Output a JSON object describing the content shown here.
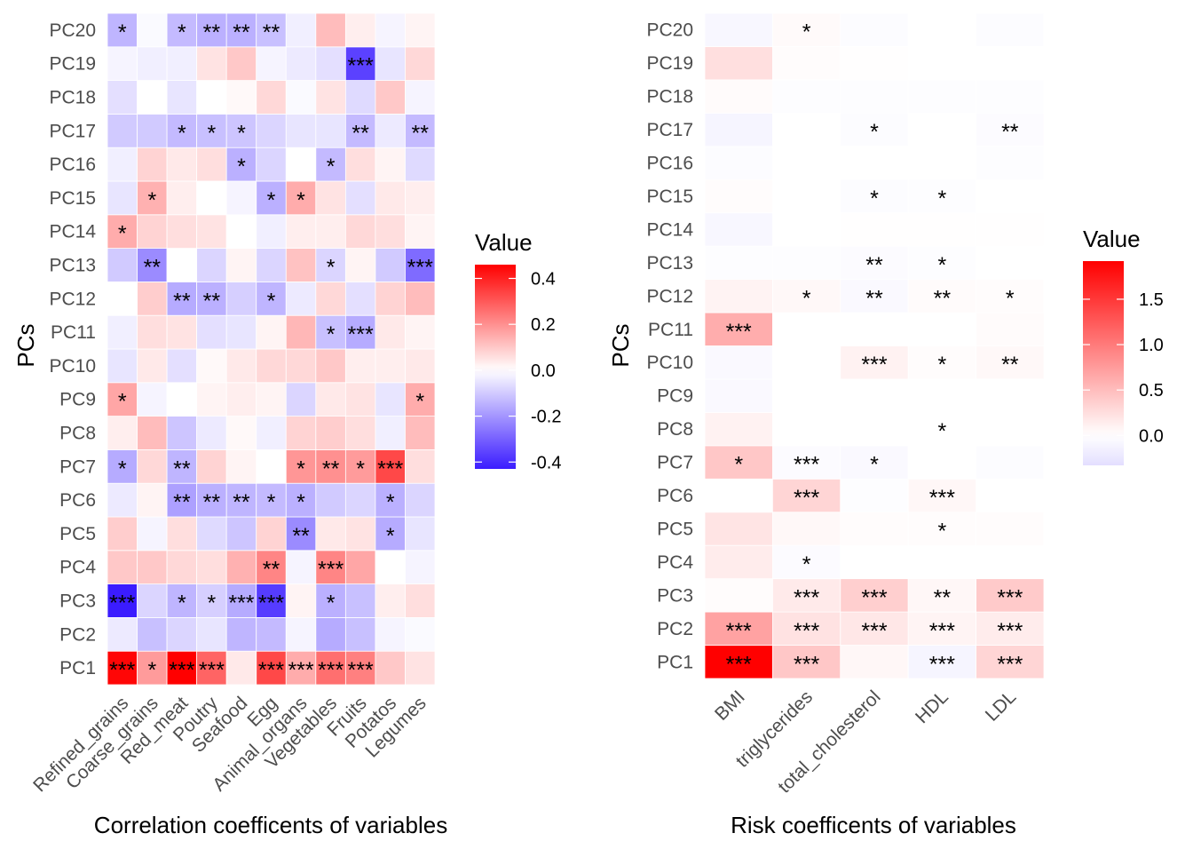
{
  "chart_data": [
    {
      "type": "heatmap",
      "xlabel": "Correlation coefficents of variables",
      "ylabel": "PCs",
      "x_categories": [
        "Refined_grains",
        "Coarse_grains",
        "Red_meat",
        "Poutry",
        "Seafood",
        "Egg",
        "Animal_organs",
        "Vegetables",
        "Fruits",
        "Potatos",
        "Legumes"
      ],
      "y_categories": [
        "PC1",
        "PC2",
        "PC3",
        "PC4",
        "PC5",
        "PC6",
        "PC7",
        "PC8",
        "PC9",
        "PC10",
        "PC11",
        "PC12",
        "PC13",
        "PC14",
        "PC15",
        "PC16",
        "PC17",
        "PC18",
        "PC19",
        "PC20"
      ],
      "legend": {
        "title": "Value",
        "ticks": [
          0.4,
          0.2,
          0.0,
          -0.2,
          -0.4
        ],
        "tick_labels": [
          "0.4",
          "0.2",
          "0.0",
          "-0.2",
          "-0.4"
        ],
        "range": [
          -0.43,
          0.46
        ],
        "position": "right"
      },
      "colors": {
        "low": "#3b1cff",
        "mid": "#ffffff",
        "high": "#ff0000"
      },
      "values": [
        [
          0.45,
          0.18,
          0.46,
          0.28,
          0.04,
          0.33,
          0.15,
          0.26,
          0.23,
          0.1,
          0.05
        ],
        [
          -0.04,
          -0.12,
          -0.08,
          -0.05,
          -0.14,
          -0.13,
          -0.02,
          -0.16,
          -0.12,
          -0.02,
          -0.01
        ],
        [
          -0.43,
          -0.08,
          -0.14,
          -0.09,
          -0.16,
          -0.37,
          0.02,
          -0.15,
          -0.12,
          0.03,
          0.06
        ],
        [
          0.1,
          0.1,
          0.07,
          0.06,
          0.14,
          0.22,
          -0.02,
          0.22,
          0.16,
          0.0,
          -0.02
        ],
        [
          0.09,
          -0.02,
          0.06,
          -0.07,
          -0.11,
          0.08,
          -0.22,
          0.04,
          0.05,
          -0.16,
          -0.05
        ],
        [
          -0.04,
          0.02,
          -0.18,
          -0.15,
          -0.14,
          -0.13,
          -0.15,
          -0.1,
          -0.08,
          -0.15,
          -0.08
        ],
        [
          -0.16,
          0.07,
          -0.14,
          0.08,
          0.02,
          0.0,
          0.19,
          0.2,
          0.18,
          0.33,
          0.06
        ],
        [
          0.03,
          0.12,
          -0.11,
          -0.04,
          0.01,
          -0.03,
          0.08,
          0.09,
          0.06,
          -0.03,
          0.12
        ],
        [
          0.16,
          -0.02,
          0.0,
          0.02,
          0.03,
          0.02,
          -0.08,
          0.04,
          0.05,
          -0.05,
          0.15
        ],
        [
          -0.05,
          0.04,
          -0.06,
          0.01,
          0.04,
          0.07,
          0.07,
          0.1,
          0.03,
          0.03,
          0.04
        ],
        [
          -0.03,
          0.06,
          0.05,
          -0.06,
          -0.05,
          0.02,
          0.13,
          -0.12,
          -0.16,
          0.04,
          0.02
        ],
        [
          0.0,
          0.09,
          -0.16,
          -0.15,
          -0.09,
          -0.14,
          -0.04,
          0.07,
          -0.06,
          0.08,
          0.12
        ],
        [
          -0.1,
          -0.22,
          0.0,
          -0.08,
          0.02,
          -0.08,
          0.11,
          -0.08,
          0.02,
          -0.1,
          -0.28
        ],
        [
          0.15,
          0.08,
          0.06,
          0.05,
          0.0,
          -0.03,
          0.03,
          0.03,
          0.07,
          0.06,
          0.02
        ],
        [
          -0.05,
          0.14,
          0.03,
          0.0,
          -0.02,
          -0.15,
          0.15,
          0.05,
          -0.06,
          0.04,
          0.03
        ],
        [
          -0.03,
          0.08,
          0.04,
          0.06,
          -0.15,
          -0.08,
          0.0,
          -0.13,
          0.06,
          0.02,
          -0.07
        ],
        [
          -0.1,
          -0.1,
          -0.13,
          -0.12,
          -0.11,
          -0.08,
          -0.05,
          -0.05,
          -0.13,
          -0.04,
          -0.13
        ],
        [
          -0.06,
          0.0,
          -0.05,
          0.0,
          0.01,
          0.07,
          -0.01,
          0.05,
          -0.07,
          0.1,
          -0.02
        ],
        [
          -0.02,
          -0.03,
          -0.03,
          0.05,
          0.1,
          -0.02,
          -0.04,
          -0.06,
          -0.36,
          -0.05,
          0.07
        ],
        [
          -0.14,
          -0.01,
          -0.13,
          -0.15,
          -0.15,
          -0.12,
          -0.03,
          0.12,
          0.03,
          -0.02,
          0.02
        ]
      ],
      "annotations": [
        [
          "***",
          "*",
          "***",
          "***",
          "",
          "***",
          "***",
          "***",
          "***",
          "",
          ""
        ],
        [
          "",
          "",
          "",
          "",
          "",
          "",
          "",
          "",
          "",
          "",
          ""
        ],
        [
          "***",
          "",
          "*",
          "*",
          "***",
          "***",
          "",
          "*",
          "",
          "",
          ""
        ],
        [
          "",
          "",
          "",
          "",
          "",
          "**",
          "",
          "***",
          "",
          "",
          ""
        ],
        [
          "",
          "",
          "",
          "",
          "",
          "",
          "**",
          "",
          "",
          "*",
          ""
        ],
        [
          "",
          "",
          "**",
          "**",
          "**",
          "*",
          "*",
          "",
          "",
          "*",
          ""
        ],
        [
          "*",
          "",
          "**",
          "",
          "",
          "",
          "*",
          "**",
          "*",
          "***",
          ""
        ],
        [
          "",
          "",
          "",
          "",
          "",
          "",
          "",
          "",
          "",
          "",
          ""
        ],
        [
          "*",
          "",
          "",
          "",
          "",
          "",
          "",
          "",
          "",
          "",
          "*"
        ],
        [
          "",
          "",
          "",
          "",
          "",
          "",
          "",
          "",
          "",
          "",
          ""
        ],
        [
          "",
          "",
          "",
          "",
          "",
          "",
          "",
          "*",
          "***",
          "",
          ""
        ],
        [
          "",
          "",
          "**",
          "**",
          "",
          "*",
          "",
          "",
          "",
          "",
          ""
        ],
        [
          "",
          "**",
          "",
          "",
          "",
          "",
          "",
          "*",
          "",
          "",
          "***"
        ],
        [
          "*",
          "",
          "",
          "",
          "",
          "",
          "",
          "",
          "",
          "",
          ""
        ],
        [
          "",
          "*",
          "",
          "",
          "",
          "*",
          "*",
          "",
          "",
          "",
          ""
        ],
        [
          "",
          "",
          "",
          "",
          "*",
          "",
          "",
          "*",
          "",
          "",
          ""
        ],
        [
          "",
          "",
          "*",
          "*",
          "*",
          "",
          "",
          "",
          "**",
          "",
          "**"
        ],
        [
          "",
          "",
          "",
          "",
          "",
          "",
          "",
          "",
          "",
          "",
          ""
        ],
        [
          "",
          "",
          "",
          "",
          "",
          "",
          "",
          "",
          "***",
          "",
          ""
        ],
        [
          "*",
          "",
          "*",
          "**",
          "**",
          "**",
          "",
          "",
          "",
          "",
          ""
        ]
      ]
    },
    {
      "type": "heatmap",
      "xlabel": "Risk coefficents of variables",
      "ylabel": "PCs",
      "x_categories": [
        "BMI",
        "triglycerides",
        "total_cholesterol",
        "HDL",
        "LDL"
      ],
      "y_categories": [
        "PC1",
        "PC2",
        "PC3",
        "PC4",
        "PC5",
        "PC6",
        "PC7",
        "PC8",
        "PC9",
        "PC10",
        "PC11",
        "PC12",
        "PC13",
        "PC14",
        "PC15",
        "PC16",
        "PC17",
        "PC18",
        "PC19",
        "PC20"
      ],
      "legend": {
        "title": "Value",
        "ticks": [
          1.5,
          1.0,
          0.5,
          0.0
        ],
        "tick_labels": [
          "1.5",
          "1.0",
          "0.5",
          "0.0"
        ],
        "range": [
          -0.33,
          1.92
        ],
        "position": "right"
      },
      "colors": {
        "low": "#3b1cff",
        "mid": "#ffffff",
        "high": "#ff0000"
      },
      "values": [
        [
          1.92,
          0.42,
          0.06,
          -0.1,
          0.32
        ],
        [
          0.7,
          0.22,
          0.18,
          0.08,
          0.14
        ],
        [
          0.02,
          0.16,
          0.36,
          0.06,
          0.4
        ],
        [
          0.14,
          -0.04,
          0.0,
          0.0,
          0.0
        ],
        [
          0.2,
          0.05,
          0.02,
          0.02,
          0.02
        ],
        [
          0.0,
          0.32,
          -0.02,
          0.06,
          0.0
        ],
        [
          0.42,
          -0.04,
          -0.06,
          0.0,
          -0.03
        ],
        [
          0.1,
          0.0,
          0.0,
          0.0,
          0.0
        ],
        [
          -0.06,
          0.0,
          0.0,
          0.0,
          0.0
        ],
        [
          -0.06,
          0.0,
          0.1,
          0.02,
          0.05
        ],
        [
          0.62,
          0.0,
          0.0,
          0.0,
          0.03
        ],
        [
          0.09,
          0.05,
          -0.06,
          0.03,
          0.02
        ],
        [
          -0.02,
          -0.02,
          -0.04,
          -0.02,
          0.0
        ],
        [
          -0.08,
          0.0,
          0.01,
          0.01,
          0.01
        ],
        [
          0.02,
          0.0,
          -0.03,
          -0.02,
          0.0
        ],
        [
          -0.03,
          0.0,
          0.0,
          0.0,
          -0.02
        ],
        [
          -0.1,
          0.0,
          -0.03,
          0.0,
          -0.04
        ],
        [
          0.03,
          -0.02,
          -0.02,
          -0.02,
          -0.02
        ],
        [
          0.24,
          0.02,
          0.01,
          0.0,
          0.0
        ],
        [
          -0.08,
          0.04,
          -0.03,
          0.0,
          -0.03
        ]
      ],
      "annotations": [
        [
          "***",
          "***",
          "",
          "***",
          "***"
        ],
        [
          "***",
          "***",
          "***",
          "***",
          "***"
        ],
        [
          "",
          "***",
          "***",
          "**",
          "***"
        ],
        [
          "",
          "*",
          "",
          "",
          ""
        ],
        [
          "",
          "",
          "",
          "*",
          ""
        ],
        [
          "",
          "***",
          "",
          "***",
          ""
        ],
        [
          "*",
          "***",
          "*",
          "",
          ""
        ],
        [
          "",
          "",
          "",
          "*",
          ""
        ],
        [
          "",
          "",
          "",
          "",
          ""
        ],
        [
          "",
          "",
          "***",
          "*",
          "**"
        ],
        [
          "***",
          "",
          "",
          "",
          ""
        ],
        [
          "",
          "*",
          "**",
          "**",
          "*"
        ],
        [
          "",
          "",
          "**",
          "*",
          ""
        ],
        [
          "",
          "",
          "",
          "",
          ""
        ],
        [
          "",
          "",
          "*",
          "*",
          ""
        ],
        [
          "",
          "",
          "",
          "",
          ""
        ],
        [
          "",
          "",
          "*",
          "",
          "**"
        ],
        [
          "",
          "",
          "",
          "",
          ""
        ],
        [
          "",
          "",
          "",
          "",
          ""
        ],
        [
          "",
          "*",
          "",
          "",
          ""
        ]
      ]
    }
  ]
}
